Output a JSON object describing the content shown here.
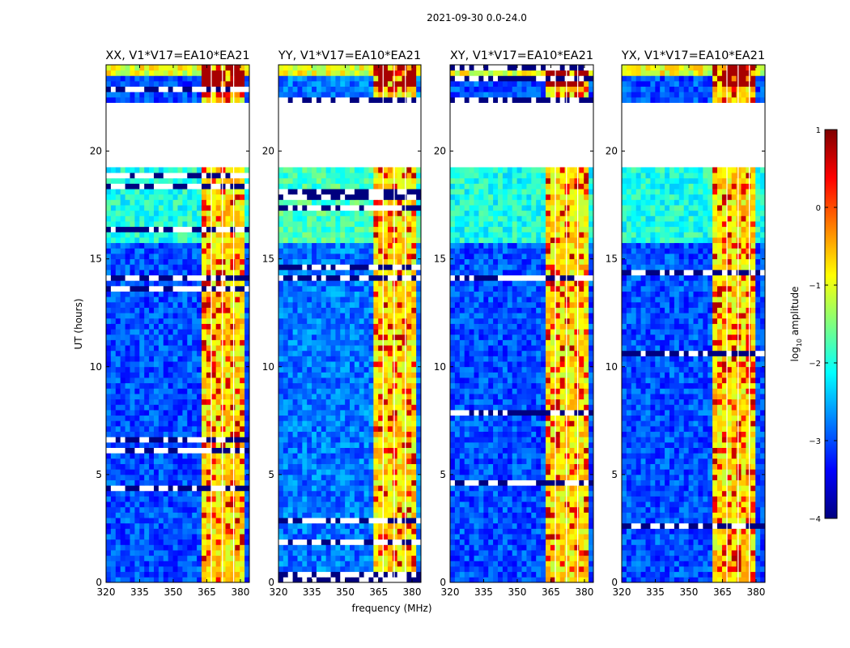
{
  "figure": {
    "title": "2021-09-30 0.0-24.0",
    "ylabel": "UT (hours)",
    "xlabel": "frequency (MHz)"
  },
  "colorbar": {
    "label_prefix": "log",
    "label_sub": "10",
    "label_suffix": " amplitude",
    "range": [
      -4,
      1
    ],
    "ticks": [
      1,
      0,
      -1,
      -2,
      -3,
      -4
    ],
    "tick_labels": [
      "1",
      "0",
      "−1",
      "−2",
      "−3",
      "−4"
    ],
    "colormap": [
      "#00007f",
      "#0000ff",
      "#007fff",
      "#00ffff",
      "#7fff7f",
      "#ffff00",
      "#ff7f00",
      "#ff0000",
      "#7f0000"
    ]
  },
  "chart_data": [
    {
      "type": "heatmap",
      "title": "XX, V1*V17=EA10*EA21",
      "x": {
        "range": [
          320,
          384
        ],
        "ticks": [
          320,
          335,
          350,
          365,
          380
        ],
        "tick_labels": [
          "320",
          "335",
          "350",
          "365",
          "380"
        ]
      },
      "y": {
        "range": [
          0,
          24
        ],
        "ticks": [
          0,
          5,
          10,
          15,
          20
        ],
        "tick_labels": [
          "0",
          "5",
          "10",
          "15",
          "20"
        ]
      },
      "no_data_hours": [
        [
          19.3,
          22.2
        ]
      ],
      "rfi_band_mhz": [
        363,
        382
      ],
      "background_log_amp": -3.0
    },
    {
      "type": "heatmap",
      "title": "YY, V1*V17=EA10*EA21",
      "x": {
        "range": [
          320,
          384
        ],
        "ticks": [
          320,
          335,
          350,
          365,
          380
        ],
        "tick_labels": [
          "320",
          "335",
          "350",
          "365",
          "380"
        ]
      },
      "y": {
        "range": [
          0,
          24
        ],
        "ticks": [
          0,
          5,
          10,
          15,
          20
        ],
        "tick_labels": [
          "0",
          "5",
          "10",
          "15",
          "20"
        ]
      },
      "no_data_hours": [
        [
          19.3,
          22.2
        ]
      ],
      "rfi_band_mhz": [
        362,
        382
      ],
      "background_log_amp": -2.8
    },
    {
      "type": "heatmap",
      "title": "XY, V1*V17=EA10*EA21",
      "x": {
        "range": [
          320,
          384
        ],
        "ticks": [
          320,
          335,
          350,
          365,
          380
        ],
        "tick_labels": [
          "320",
          "335",
          "350",
          "365",
          "380"
        ]
      },
      "y": {
        "range": [
          0,
          24
        ],
        "ticks": [
          0,
          5,
          10,
          15,
          20
        ],
        "tick_labels": [
          "0",
          "5",
          "10",
          "15",
          "20"
        ]
      },
      "no_data_hours": [
        [
          19.3,
          22.2
        ]
      ],
      "rfi_band_mhz": [
        362,
        381
      ],
      "background_log_amp": -3.0
    },
    {
      "type": "heatmap",
      "title": "YX, V1*V17=EA10*EA21",
      "x": {
        "range": [
          320,
          384
        ],
        "ticks": [
          320,
          335,
          350,
          365,
          380
        ],
        "tick_labels": [
          "320",
          "335",
          "350",
          "365",
          "380"
        ]
      },
      "y": {
        "range": [
          0,
          24
        ],
        "ticks": [
          0,
          5,
          10,
          15,
          20
        ],
        "tick_labels": [
          "0",
          "5",
          "10",
          "15",
          "20"
        ]
      },
      "no_data_hours": [
        [
          19.3,
          22.2
        ]
      ],
      "rfi_band_mhz": [
        361,
        380
      ],
      "background_log_amp": -3.0
    }
  ]
}
